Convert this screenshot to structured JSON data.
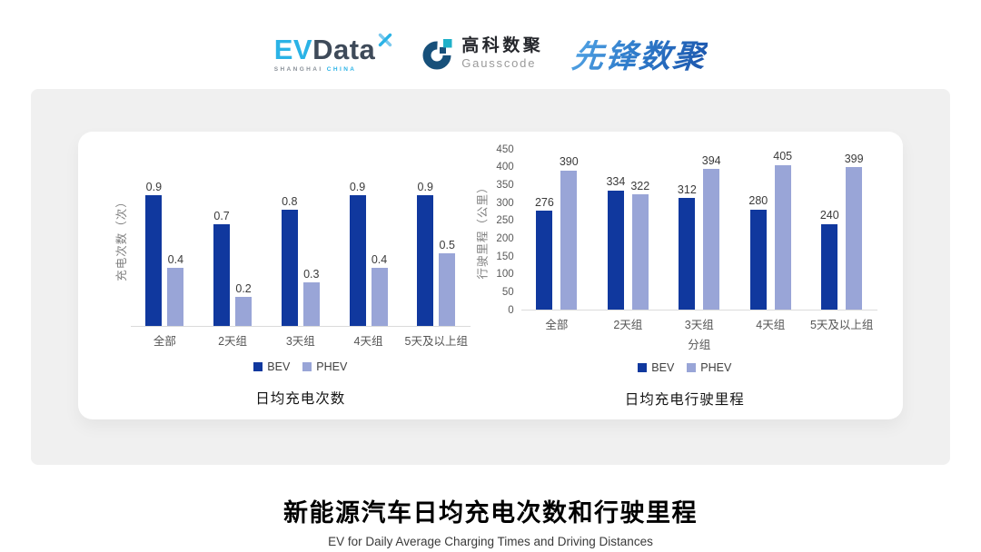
{
  "header": {
    "evdata": {
      "ev": "EV",
      "data": "Data",
      "tagline_left": "SHANGHAI",
      "tagline_right": "CHINA"
    },
    "gausscode": {
      "cn": "高科数聚",
      "en": "Gausscode"
    },
    "xianfeng": {
      "text": "先锋数聚"
    }
  },
  "colors": {
    "bev": "#10389E",
    "phev": "#99A5D7",
    "evdata_blue": "#2BB3E6",
    "evdata_dark": "#3E4A59",
    "gausscode_dark": "#17507A",
    "gausscode_teal": "#1FB1C9",
    "xianfeng_blue": "#2F7CCB",
    "panel_gray": "#F0F0F0"
  },
  "chart_data": [
    {
      "type": "bar",
      "title": "日均充电次数",
      "ylabel": "充电次数（次）",
      "xlabel": "",
      "categories": [
        "全部",
        "2天组",
        "3天组",
        "4天组",
        "5天及以上组"
      ],
      "series": [
        {
          "name": "BEV",
          "values": [
            0.9,
            0.7,
            0.8,
            0.9,
            0.9
          ]
        },
        {
          "name": "PHEV",
          "values": [
            0.4,
            0.2,
            0.3,
            0.4,
            0.5
          ]
        }
      ],
      "ylim": [
        0,
        1.0
      ],
      "yticks": [],
      "grid": false,
      "legend_position": "bottom"
    },
    {
      "type": "bar",
      "title": "日均充电行驶里程",
      "ylabel": "行驶里程（公里）",
      "xlabel": "分组",
      "categories": [
        "全部",
        "2天组",
        "3天组",
        "4天组",
        "5天及以上组"
      ],
      "series": [
        {
          "name": "BEV",
          "values": [
            276,
            334,
            312,
            280,
            240
          ]
        },
        {
          "name": "PHEV",
          "values": [
            390,
            322,
            394,
            405,
            399
          ]
        }
      ],
      "ylim": [
        0,
        450
      ],
      "yticks": [
        0,
        50,
        100,
        150,
        200,
        250,
        300,
        350,
        400,
        450
      ],
      "grid": false,
      "legend_position": "bottom"
    }
  ],
  "footer": {
    "title": "新能源汽车日均充电次数和行驶里程",
    "subtitle": "EV for Daily Average Charging Times and Driving Distances"
  }
}
